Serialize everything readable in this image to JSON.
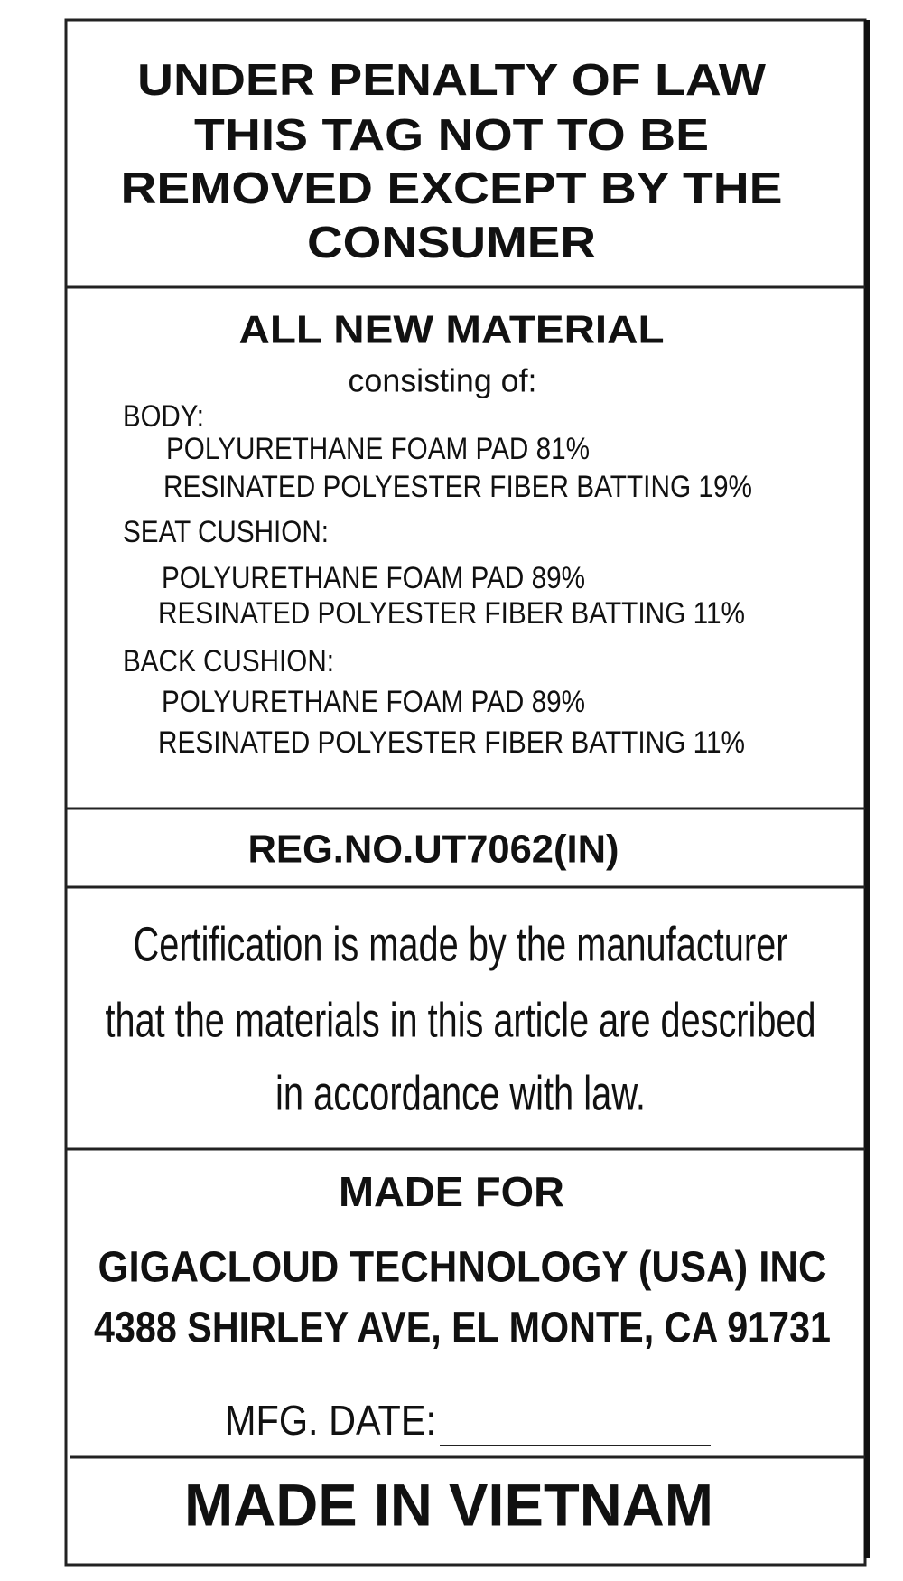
{
  "header": {
    "lines": [
      "UNDER PENALTY OF LAW",
      "THIS TAG NOT TO BE",
      "REMOVED EXCEPT BY THE",
      "CONSUMER"
    ]
  },
  "materials": {
    "title": "ALL NEW MATERIAL",
    "subtitle": "consisting of:",
    "sections": [
      {
        "label": "BODY:",
        "items": [
          "POLYURETHANE FOAM PAD 81%",
          "RESINATED POLYESTER FIBER BATTING 19%"
        ]
      },
      {
        "label": "SEAT CUSHION:",
        "items": [
          "POLYURETHANE FOAM PAD 89%",
          "RESINATED POLYESTER FIBER BATTING 11%"
        ]
      },
      {
        "label": "BACK CUSHION:",
        "items": [
          "POLYURETHANE FOAM PAD 89%",
          "RESINATED POLYESTER FIBER BATTING 11%"
        ]
      }
    ]
  },
  "registration": "REG.NO.UT7062(IN)",
  "certification": {
    "lines": [
      "Certification is made by the manufacturer",
      "that the materials in this article are described",
      "in accordance with law."
    ]
  },
  "made_for": {
    "label": "MADE FOR",
    "lines": [
      "GIGACLOUD TECHNOLOGY (USA) INC",
      "4388 SHIRLEY AVE, EL MONTE, CA 91731"
    ]
  },
  "mfg_date_label": "MFG. DATE:",
  "origin": "MADE IN VIETNAM"
}
